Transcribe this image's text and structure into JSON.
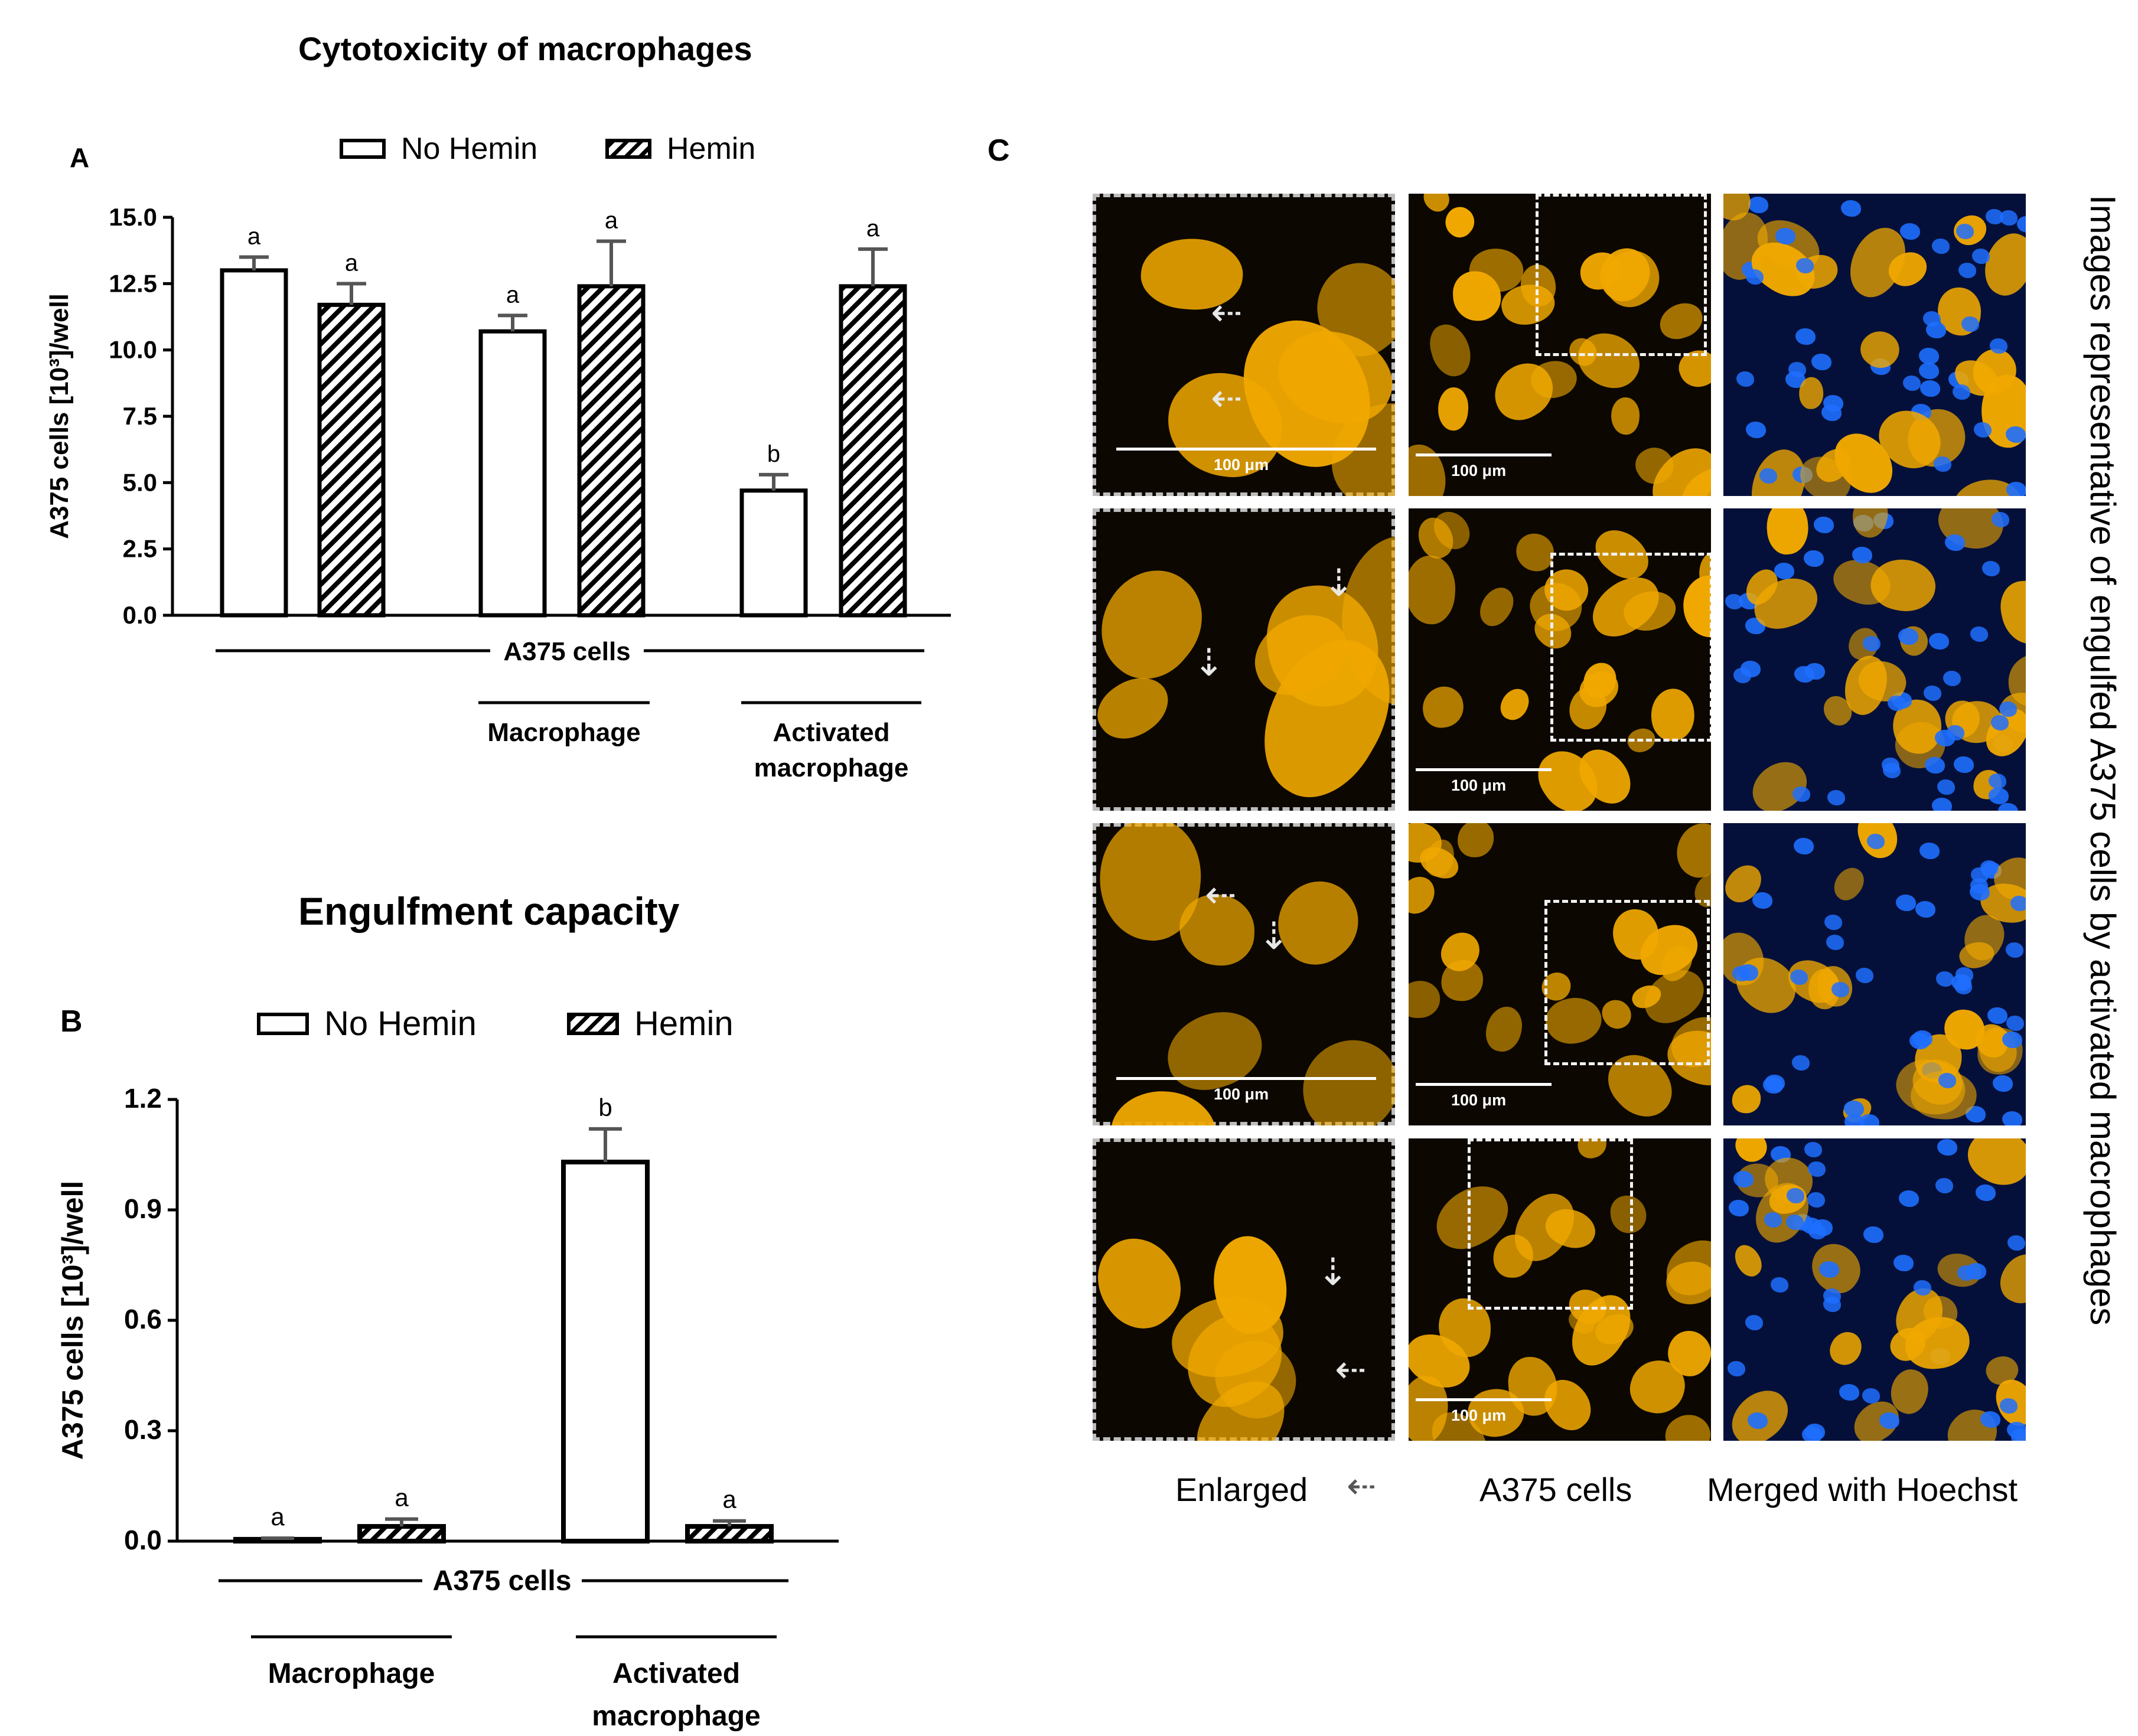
{
  "chart_data": [
    {
      "panel": "A",
      "type": "bar",
      "title": "Cytotoxicity of macrophages",
      "ylabel": "A375 cells [10³]/well",
      "ylim": [
        0,
        15
      ],
      "yticks": [
        "0.0",
        "2.5",
        "5.0",
        "7.5",
        "10.0",
        "12.5",
        "15.0"
      ],
      "groups": [
        "",
        "Macrophage",
        "Activated macrophage"
      ],
      "group_labels": [
        [],
        [
          "Macrophage"
        ],
        [
          "Activated",
          "macrophage"
        ]
      ],
      "group_header": "A375 cells",
      "series": [
        {
          "name": "No Hemin",
          "pattern": "open",
          "values": [
            13.0,
            10.7,
            4.7
          ],
          "errors": [
            0.5,
            0.6,
            0.6
          ],
          "letters": [
            "a",
            "a",
            "b"
          ]
        },
        {
          "name": "Hemin",
          "pattern": "hatched",
          "values": [
            11.7,
            12.4,
            12.4
          ],
          "errors": [
            0.8,
            1.7,
            1.4
          ],
          "letters": [
            "a",
            "a",
            "a"
          ]
        }
      ],
      "legend": [
        "No Hemin",
        "Hemin"
      ],
      "legend_position": "top"
    },
    {
      "panel": "B",
      "type": "bar",
      "title": "Engulfment capacity",
      "ylabel": "A375 cells [10³]/well",
      "ylim": [
        0,
        1.2
      ],
      "yticks": [
        "0.0",
        "0.3",
        "0.6",
        "0.9",
        "1.2"
      ],
      "groups": [
        "Macrophage",
        "Activated macrophage"
      ],
      "group_labels": [
        [
          "Macrophage"
        ],
        [
          "Activated",
          "macrophage"
        ]
      ],
      "group_header": "A375 cells",
      "series": [
        {
          "name": "No Hemin",
          "pattern": "open",
          "values": [
            0.005,
            1.03
          ],
          "errors": [
            0.003,
            0.09
          ],
          "letters": [
            "a",
            "b"
          ]
        },
        {
          "name": "Hemin",
          "pattern": "hatched",
          "values": [
            0.04,
            0.04
          ],
          "errors": [
            0.02,
            0.015
          ],
          "letters": [
            "a",
            "a"
          ]
        }
      ],
      "legend": [
        "No Hemin",
        "Hemin"
      ],
      "legend_position": "top"
    }
  ],
  "panel_c": {
    "letter": "C",
    "scale_label": "100 μm",
    "column_labels": [
      "Enlarged",
      "A375 cells",
      "Merged with Hoechst"
    ],
    "arrow_glyph": "⇠",
    "side_label": "Images representative of engulfed A375 cells by activated macrophages",
    "colors": {
      "a375": "#f0a800",
      "nuclei": "#1e6fff",
      "background_dark": "#0c0700",
      "background_merged": "#05103a"
    }
  },
  "colors": {
    "bar_edge": "#000000",
    "error_bar": "#555555"
  }
}
